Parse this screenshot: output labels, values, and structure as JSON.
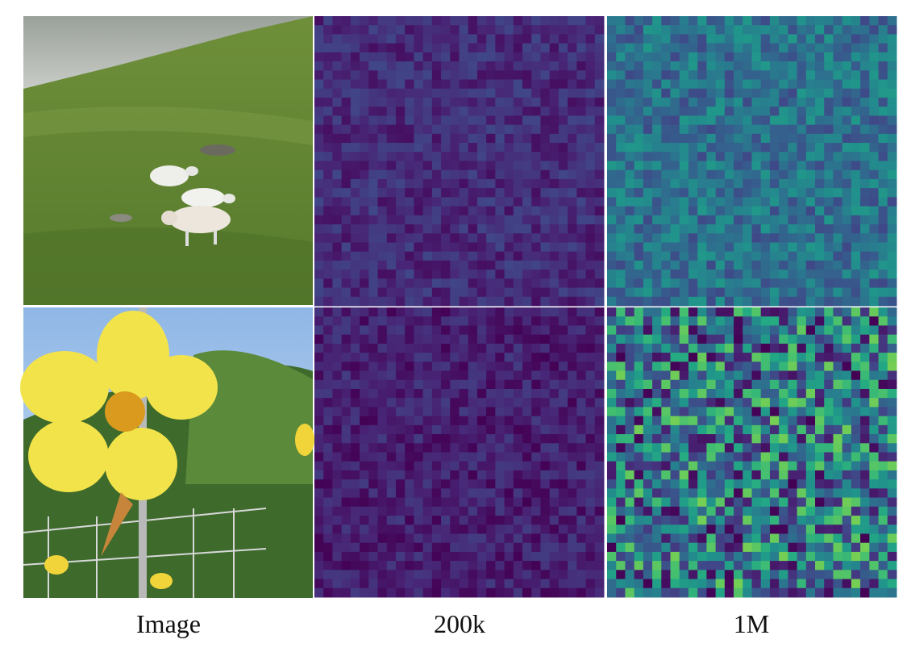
{
  "columns": {
    "labels": [
      "Image",
      "200k",
      "1M"
    ]
  }
}
